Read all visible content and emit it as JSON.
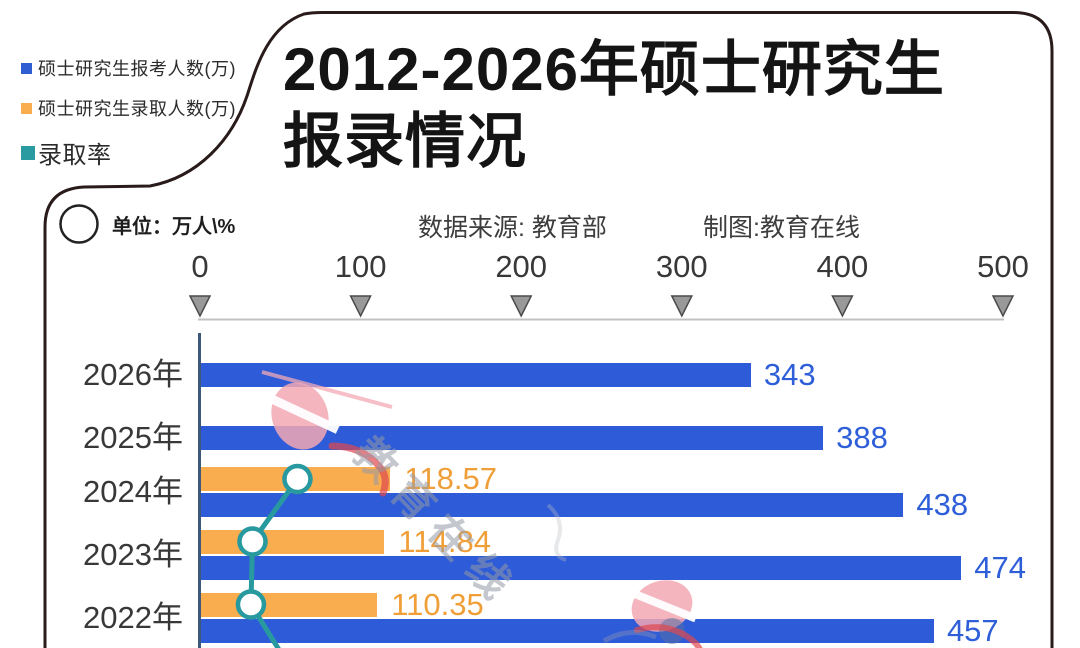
{
  "header": {
    "title_line1": "2012-2026年硕士研究生",
    "title_line2": "报录情况",
    "unit_label": "单位：万人\\%",
    "source_label": "数据来源: 教育部",
    "credit_label": "制图:教育在线"
  },
  "legend": [
    {
      "label": "硕士研究生报考人数(万)",
      "color": "#2f5ed3"
    },
    {
      "label": "硕士研究生录取人数(万)",
      "color": "#f9ad4e"
    },
    {
      "label": "录取率",
      "color": "#2a9ba1"
    }
  ],
  "watermark": {
    "text": "教育在线"
  },
  "chart_data": {
    "type": "bar",
    "orientation": "horizontal",
    "title": "2012-2026年硕士研究生报录情况",
    "unit": "万人\\%",
    "categories": [
      "2026年",
      "2025年",
      "2024年",
      "2023年",
      "2022年"
    ],
    "series": [
      {
        "name": "硕士研究生报考人数(万)",
        "type": "bar",
        "color": "#2e5bd8",
        "values": [
          343,
          388,
          438,
          474,
          457
        ],
        "labels_shown": true
      },
      {
        "name": "硕士研究生录取人数(万)",
        "type": "bar",
        "color": "#f9ad4e",
        "values": [
          null,
          null,
          118.57,
          114.84,
          110.35
        ],
        "labels_shown": true
      },
      {
        "name": "录取率",
        "type": "line",
        "color": "#27999f",
        "unit": "%",
        "values": [
          null,
          null,
          27.1,
          24.2,
          24.1
        ],
        "labels_shown": false
      }
    ],
    "xlim": [
      0,
      500
    ],
    "xticks": [
      0,
      100,
      200,
      300,
      400,
      500
    ],
    "grid": false,
    "legend_position": "top-left"
  }
}
